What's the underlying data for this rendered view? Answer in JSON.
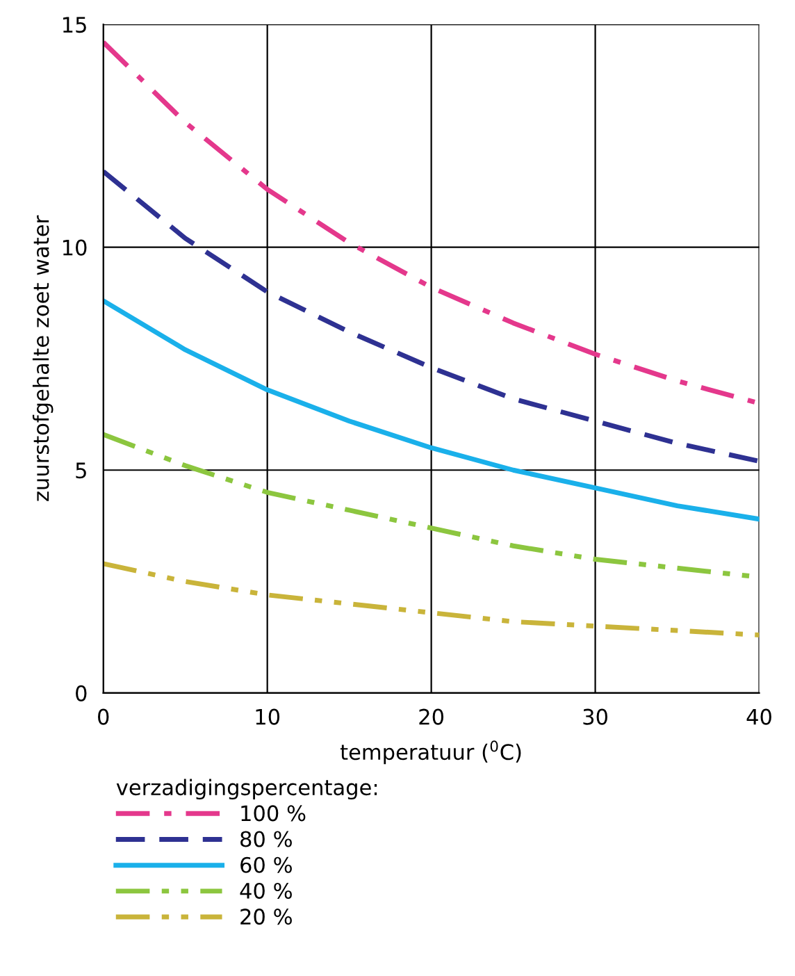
{
  "chart_data": {
    "type": "line",
    "xlabel": "temperatuur ($^{0}$C)",
    "ylabel": "zuurstofgehalte zoet water",
    "legend_title": "verzadigingspercentage:",
    "x": [
      0,
      5,
      10,
      15,
      20,
      25,
      30,
      35,
      40
    ],
    "series": [
      {
        "name": "100 %",
        "color": "#e4388c",
        "line_style": "dashdot",
        "values": [
          14.6,
          12.8,
          11.3,
          10.1,
          9.1,
          8.3,
          7.6,
          7.0,
          6.5
        ]
      },
      {
        "name": "80 %",
        "color": "#2e3192",
        "line_style": "dashed",
        "values": [
          11.7,
          10.2,
          9.0,
          8.1,
          7.3,
          6.6,
          6.1,
          5.6,
          5.2
        ]
      },
      {
        "name": "60 %",
        "color": "#1ab0ea",
        "line_style": "solid",
        "values": [
          8.8,
          7.7,
          6.8,
          6.1,
          5.5,
          5.0,
          4.6,
          4.2,
          3.9
        ]
      },
      {
        "name": "40 %",
        "color": "#8cc63f",
        "line_style": "dashdotdot",
        "values": [
          5.8,
          5.1,
          4.5,
          4.1,
          3.7,
          3.3,
          3.0,
          2.8,
          2.6
        ]
      },
      {
        "name": "20 %",
        "color": "#c9b43a",
        "line_style": "dashdotdot",
        "values": [
          2.9,
          2.5,
          2.2,
          2.0,
          1.8,
          1.6,
          1.5,
          1.4,
          1.3
        ]
      }
    ],
    "xlim": [
      0,
      40
    ],
    "ylim": [
      0,
      15
    ],
    "xticks": [
      0,
      10,
      20,
      30,
      40
    ],
    "yticks": [
      0,
      5,
      10,
      15
    ],
    "grid": true,
    "legend": "bottom",
    "marker": "none"
  }
}
